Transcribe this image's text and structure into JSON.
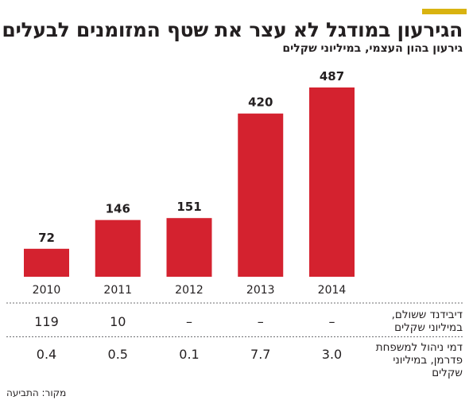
{
  "title": "הגירעון במודגל לא עצר את שטף המזומנים לבעלים",
  "subtitle": "גירעון בהון העצמי, במיליוני שקלים",
  "source": "מקור: התביעה",
  "colors": {
    "bar": "#d4222f",
    "accent": "#d9b310",
    "text": "#231f20",
    "divider": "#6d6e71"
  },
  "chart_data": {
    "type": "bar",
    "categories": [
      "2010",
      "2011",
      "2012",
      "2013",
      "2014"
    ],
    "values": [
      72,
      146,
      151,
      420,
      487
    ],
    "title": "הגירעון במודגל לא עצר את שטף המזומנים לבעלים",
    "subtitle": "גירעון בהון העצמי, במיליוני שקלים",
    "ylim": [
      0,
      487
    ],
    "grid": false,
    "value_labels": true
  },
  "table": {
    "rows": [
      {
        "label": "דיבידנד ששולם, במיליוני שקלים",
        "values": [
          "119",
          "10",
          "–",
          "–",
          "–"
        ]
      },
      {
        "label": "דמי ניהול למשפחת פדרמן, במיליוני שקלים",
        "values": [
          "0.4",
          "0.5",
          "0.1",
          "7.7",
          "3.0"
        ]
      }
    ]
  }
}
